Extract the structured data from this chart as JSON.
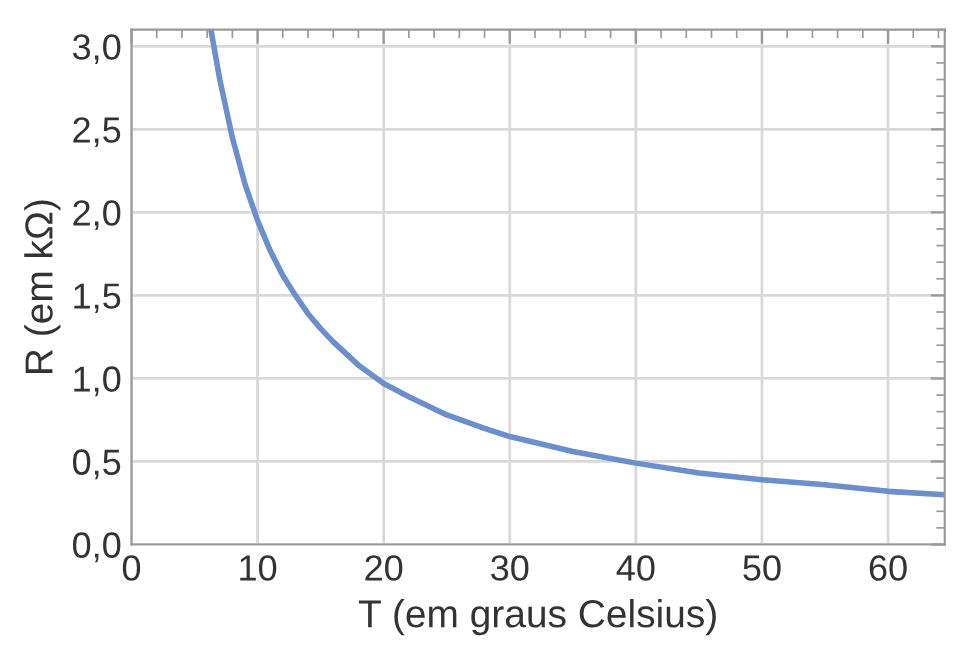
{
  "chart_data": {
    "type": "line",
    "xlabel": "T (em graus Celsius)",
    "ylabel": "R (em kΩ)",
    "series": [
      {
        "color": "#6a8fcc",
        "x": [
          6.3,
          7,
          8,
          9,
          10,
          11,
          12,
          13,
          14,
          15,
          16,
          18,
          20,
          22,
          25,
          28,
          30,
          35,
          40,
          45,
          50,
          55,
          60,
          64.5
        ],
        "values": [
          3.1,
          2.8,
          2.45,
          2.17,
          1.95,
          1.77,
          1.62,
          1.5,
          1.39,
          1.3,
          1.22,
          1.08,
          0.97,
          0.89,
          0.78,
          0.7,
          0.65,
          0.56,
          0.49,
          0.43,
          0.39,
          0.36,
          0.32,
          0.3
        ]
      }
    ],
    "xlim": [
      0,
      64.5
    ],
    "ylim": [
      0,
      3.1
    ],
    "xticks": [
      0,
      10,
      20,
      30,
      40,
      50,
      60
    ],
    "yticks": [
      {
        "value": 0,
        "label": "0,0"
      },
      {
        "value": 0.5,
        "label": "0,5"
      },
      {
        "value": 1,
        "label": "1,0"
      },
      {
        "value": 1.5,
        "label": "1,5"
      },
      {
        "value": 2,
        "label": "2,0"
      },
      {
        "value": 2.5,
        "label": "2,5"
      },
      {
        "value": 3,
        "label": "3,0"
      }
    ],
    "grid": true,
    "marker": "none",
    "line_style": "solid"
  }
}
